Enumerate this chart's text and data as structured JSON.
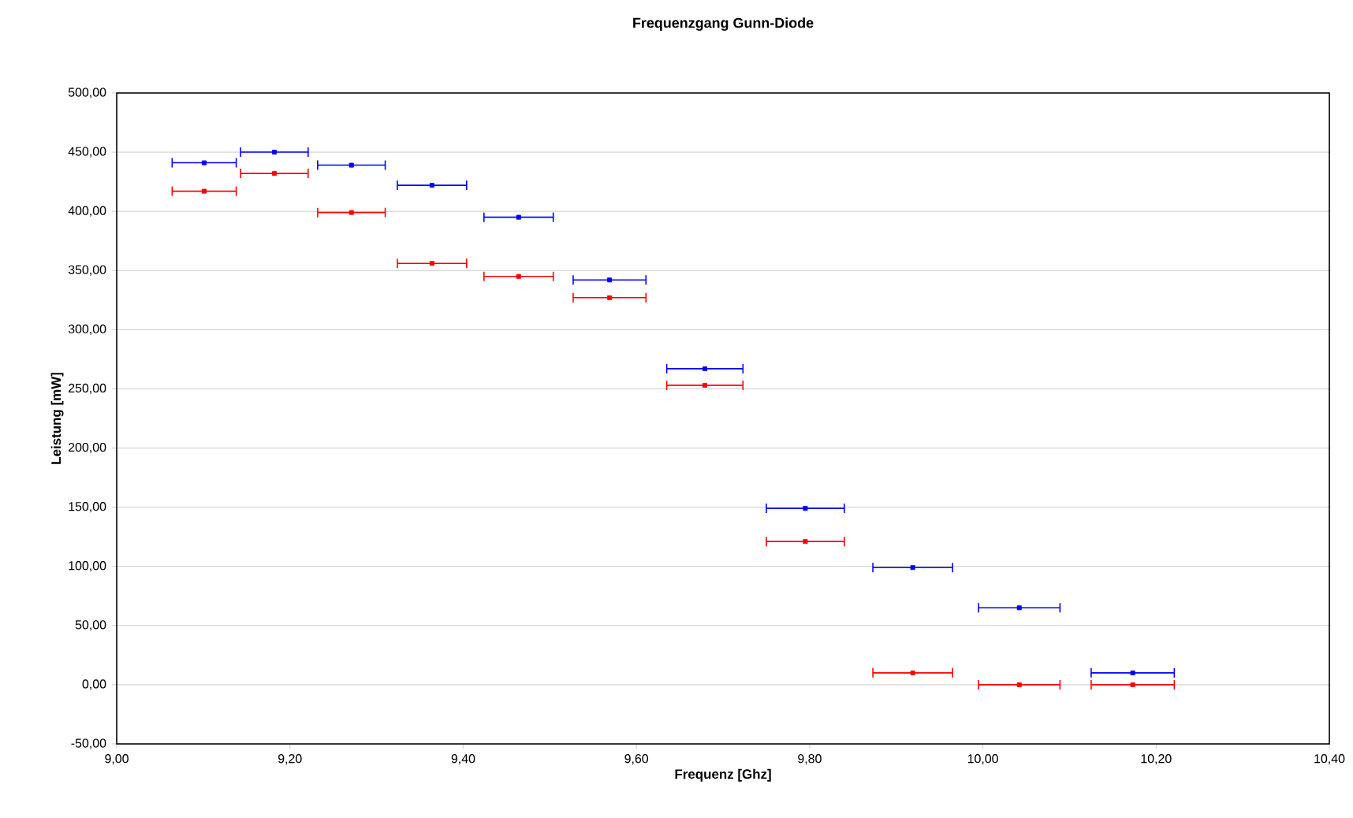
{
  "chart_data": {
    "type": "scatter",
    "title": "Frequenzgang Gunn-Diode",
    "xlabel": "Frequenz [Ghz]",
    "ylabel": "Leistung [mW]",
    "x": [
      9.101,
      9.182,
      9.271,
      9.364,
      9.464,
      9.569,
      9.679,
      9.795,
      9.919,
      10.042,
      10.173
    ],
    "series": [
      {
        "color": "#0000ff",
        "values": [
          441,
          450,
          439,
          422,
          395,
          342,
          267,
          149,
          99,
          65,
          10
        ],
        "xerrors": [
          0.037,
          0.039,
          0.039,
          0.04,
          0.04,
          0.042,
          0.044,
          0.045,
          0.046,
          0.047,
          0.048
        ]
      },
      {
        "color": "#ff0000",
        "values": [
          417,
          432,
          399,
          356,
          345,
          327,
          253,
          121,
          10,
          0,
          0
        ],
        "xerrors": [
          0.037,
          0.039,
          0.039,
          0.04,
          0.04,
          0.042,
          0.044,
          0.045,
          0.046,
          0.047,
          0.048
        ]
      }
    ],
    "xlim": [
      9.0,
      10.4
    ],
    "ylim": [
      -50,
      500
    ],
    "xticks": [
      {
        "value": 9.0,
        "label": "9,00"
      },
      {
        "value": 9.2,
        "label": "9,20"
      },
      {
        "value": 9.4,
        "label": "9,40"
      },
      {
        "value": 9.6,
        "label": "9,60"
      },
      {
        "value": 9.8,
        "label": "9,80"
      },
      {
        "value": 10.0,
        "label": "10,00"
      },
      {
        "value": 10.2,
        "label": "10,20"
      },
      {
        "value": 10.4,
        "label": "10,40"
      }
    ],
    "yticks": [
      {
        "value": -50,
        "label": "-50,00"
      },
      {
        "value": 0,
        "label": "0,00"
      },
      {
        "value": 50,
        "label": "50,00"
      },
      {
        "value": 100,
        "label": "100,00"
      },
      {
        "value": 150,
        "label": "150,00"
      },
      {
        "value": 200,
        "label": "200,00"
      },
      {
        "value": 250,
        "label": "250,00"
      },
      {
        "value": 300,
        "label": "300,00"
      },
      {
        "value": 350,
        "label": "350,00"
      },
      {
        "value": 400,
        "label": "400,00"
      },
      {
        "value": 450,
        "label": "450,00"
      },
      {
        "value": 500,
        "label": "500,00"
      }
    ],
    "grid": "y",
    "marker": "square"
  }
}
